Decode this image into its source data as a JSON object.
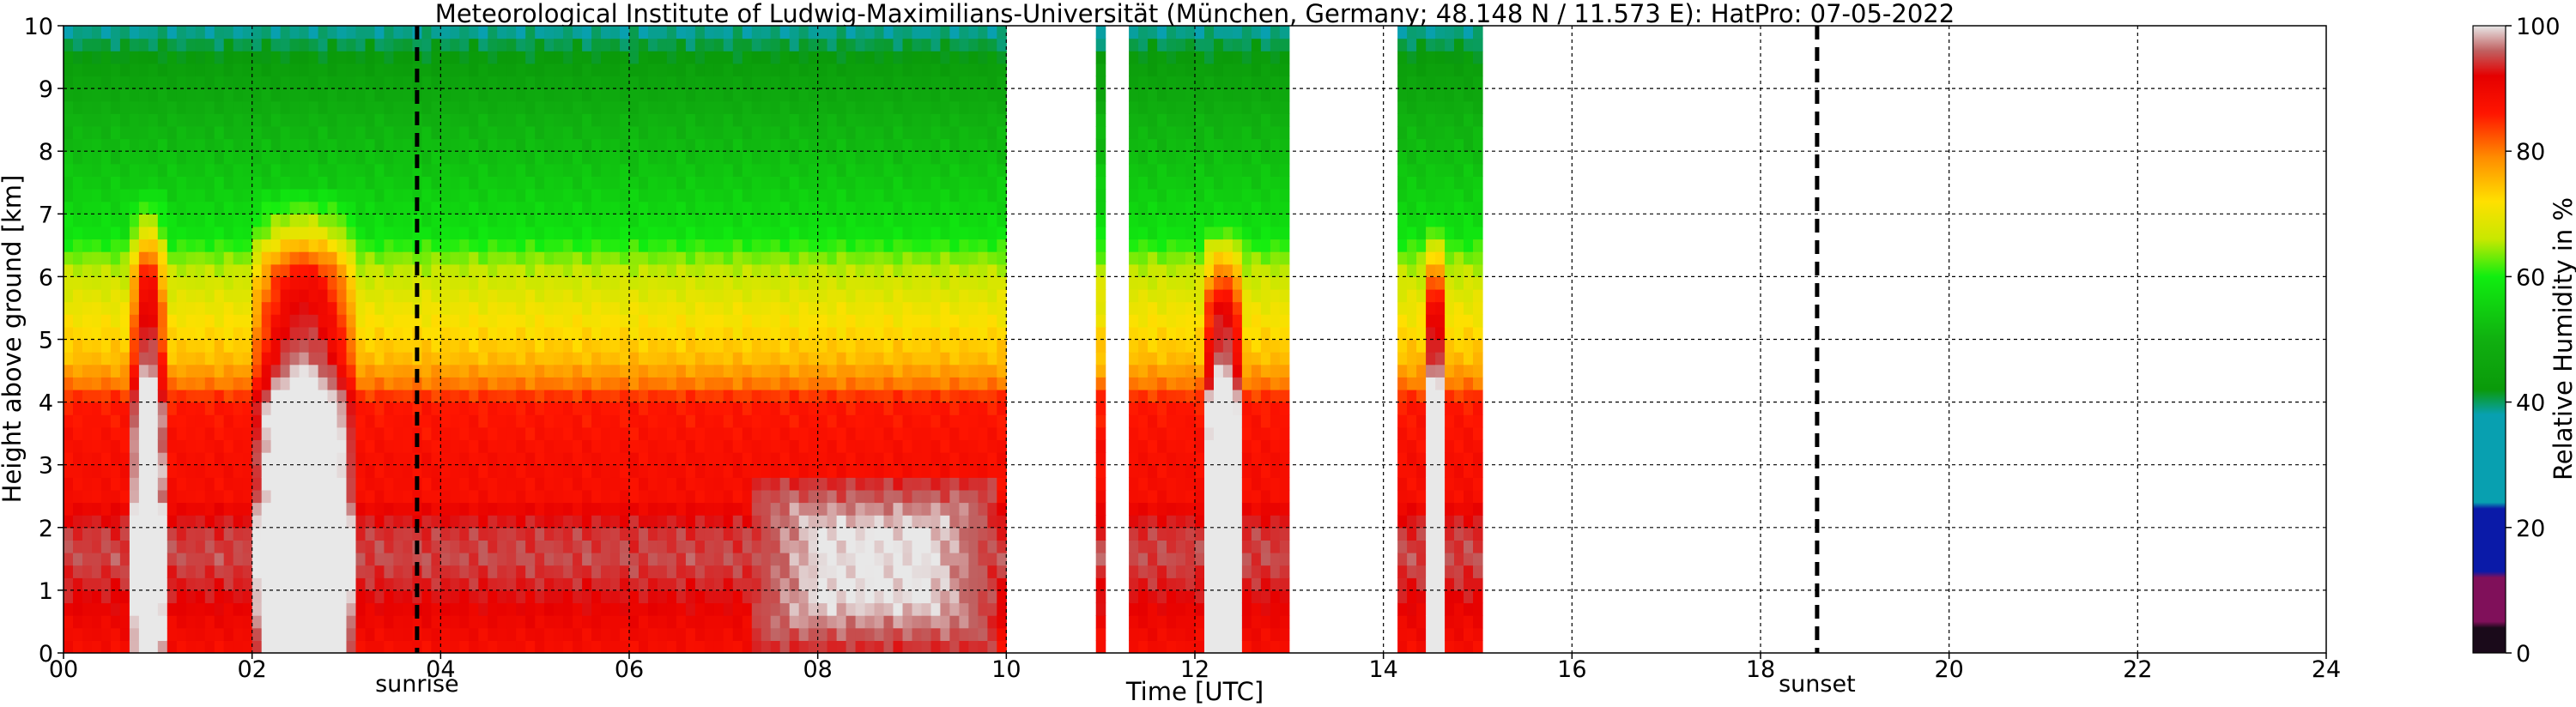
{
  "chart_data": {
    "type": "heatmap",
    "title": "Meteorological Institute of Ludwig-Maximilians-Universität (München, Germany; 48.148 N / 11.573 E):    HatPro: 07-05-2022",
    "xlabel": "Time [UTC]",
    "ylabel": "Height above ground [km]",
    "xlim": [
      0,
      24
    ],
    "ylim": [
      0,
      10
    ],
    "x_ticks": [
      0,
      2,
      4,
      6,
      8,
      10,
      12,
      14,
      16,
      18,
      20,
      22,
      24
    ],
    "x_tick_labels": [
      "00",
      "02",
      "04",
      "06",
      "08",
      "10",
      "12",
      "14",
      "16",
      "18",
      "20",
      "22",
      "24"
    ],
    "y_ticks": [
      0,
      1,
      2,
      3,
      4,
      5,
      6,
      7,
      8,
      9,
      10
    ],
    "y_tick_labels": [
      "0",
      "1",
      "2",
      "3",
      "4",
      "5",
      "6",
      "7",
      "8",
      "9",
      "10"
    ],
    "grid": true,
    "data_segments": [
      {
        "start": 0.0,
        "end": 10.0
      },
      {
        "start": 10.95,
        "end": 11.05
      },
      {
        "start": 11.3,
        "end": 13.0
      },
      {
        "start": 14.15,
        "end": 15.05
      }
    ],
    "humidity_profile_km_pct": [
      {
        "height": 0.0,
        "rh": 88
      },
      {
        "height": 0.5,
        "rh": 90
      },
      {
        "height": 1.0,
        "rh": 93
      },
      {
        "height": 1.5,
        "rh": 95
      },
      {
        "height": 2.0,
        "rh": 94
      },
      {
        "height": 2.5,
        "rh": 88
      },
      {
        "height": 3.0,
        "rh": 88
      },
      {
        "height": 3.5,
        "rh": 87
      },
      {
        "height": 4.0,
        "rh": 86
      },
      {
        "height": 4.3,
        "rh": 80
      },
      {
        "height": 4.7,
        "rh": 75
      },
      {
        "height": 5.5,
        "rh": 70
      },
      {
        "height": 6.2,
        "rh": 65
      },
      {
        "height": 6.7,
        "rh": 58
      },
      {
        "height": 7.5,
        "rh": 54
      },
      {
        "height": 8.5,
        "rh": 50
      },
      {
        "height": 9.3,
        "rh": 44
      },
      {
        "height": 10.0,
        "rh": 38
      }
    ],
    "moist_plumes": [
      {
        "center": 0.9,
        "width": 0.2,
        "top": 7.5
      },
      {
        "center": 2.55,
        "width": 0.6,
        "top": 7.5
      },
      {
        "center": 12.3,
        "width": 0.25,
        "top": 7.0
      },
      {
        "center": 14.55,
        "width": 0.15,
        "top": 7.0
      }
    ],
    "saturated_patches": [
      {
        "start": 7.3,
        "end": 9.9,
        "bottom": 0.1,
        "top": 2.7
      }
    ],
    "markers": [
      {
        "label": "sunrise",
        "time": 3.75
      },
      {
        "label": "sunset",
        "time": 18.6
      }
    ],
    "colorbar": {
      "label": "Relative Humidity in %",
      "ticks": [
        "0",
        "20",
        "40",
        "60",
        "80",
        "100"
      ],
      "range": [
        0,
        100
      ],
      "stops": [
        {
          "value": 0,
          "color": "#1a0a1a"
        },
        {
          "value": 4,
          "color": "#1a0a1a"
        },
        {
          "value": 5,
          "color": "#80105a"
        },
        {
          "value": 12,
          "color": "#80105a"
        },
        {
          "value": 13,
          "color": "#0a1aa8"
        },
        {
          "value": 23,
          "color": "#0a1aa8"
        },
        {
          "value": 24,
          "color": "#08a0b0"
        },
        {
          "value": 38,
          "color": "#08a0b0"
        },
        {
          "value": 42,
          "color": "#0a9a0a"
        },
        {
          "value": 50,
          "color": "#10b010"
        },
        {
          "value": 60,
          "color": "#10ee10"
        },
        {
          "value": 66,
          "color": "#c8e800"
        },
        {
          "value": 72,
          "color": "#ffe000"
        },
        {
          "value": 79,
          "color": "#ff8c00"
        },
        {
          "value": 86,
          "color": "#ff1500"
        },
        {
          "value": 92,
          "color": "#e50000"
        },
        {
          "value": 96,
          "color": "#c06060"
        },
        {
          "value": 100,
          "color": "#e8e8e8"
        }
      ]
    }
  }
}
